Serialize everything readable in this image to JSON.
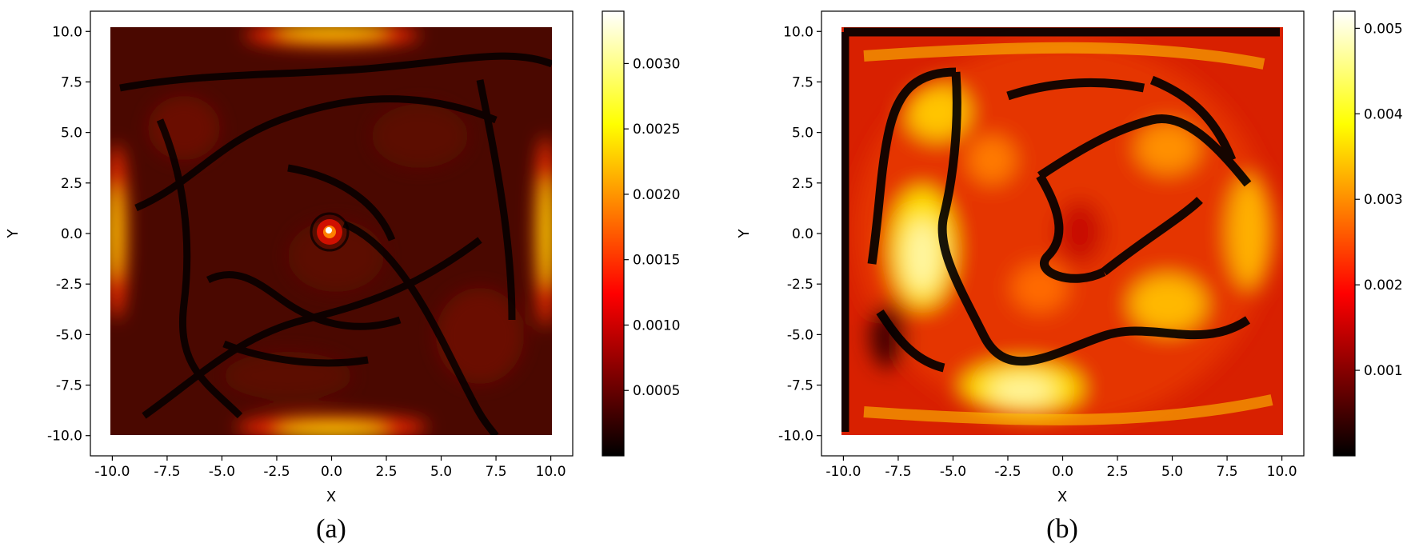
{
  "figure": {
    "captions": [
      "(a)",
      "(b)"
    ]
  },
  "chart_data": [
    {
      "type": "heatmap",
      "panel": "(a)",
      "title": "",
      "xlabel": "X",
      "ylabel": "Y",
      "xlim": [
        -11,
        11
      ],
      "ylim": [
        -11,
        11
      ],
      "domain": {
        "x": [
          -10,
          10
        ],
        "y": [
          -10,
          10
        ]
      },
      "xticks": [
        -10.0,
        -7.5,
        -5.0,
        -2.5,
        0.0,
        2.5,
        5.0,
        7.5,
        10.0
      ],
      "yticks": [
        -10.0,
        -7.5,
        -5.0,
        -2.5,
        0.0,
        2.5,
        5.0,
        7.5,
        10.0
      ],
      "xtick_labels": [
        "-10.0",
        "-7.5",
        "-5.0",
        "-2.5",
        "0.0",
        "2.5",
        "5.0",
        "7.5",
        "10.0"
      ],
      "ytick_labels": [
        "-10.0",
        "-7.5",
        "-5.0",
        "-2.5",
        "0.0",
        "2.5",
        "5.0",
        "7.5",
        "10.0"
      ],
      "colormap": "hot",
      "colorbar": {
        "vmin": 0.0,
        "vmax": 0.0034,
        "ticks": [
          0.0005,
          0.001,
          0.0015,
          0.002,
          0.0025,
          0.003
        ],
        "tick_labels": [
          "0.0005",
          "0.0010",
          "0.0015",
          "0.0020",
          "0.0025",
          "0.0030"
        ]
      },
      "grid": false,
      "features": [
        {
          "kind": "hotspot",
          "x": 0.0,
          "y": 0.0,
          "value": 0.0034
        },
        {
          "kind": "edge_band",
          "edge": "top",
          "x": [
            -3.0,
            3.0
          ],
          "y": 10.0,
          "value": 0.0032
        },
        {
          "kind": "edge_band",
          "edge": "bottom",
          "x": [
            -3.0,
            3.0
          ],
          "y": -10.0,
          "value": 0.003
        },
        {
          "kind": "edge_band",
          "edge": "left",
          "x": -10.0,
          "y": [
            -2.0,
            2.0
          ],
          "value": 0.0028
        },
        {
          "kind": "edge_band",
          "edge": "right",
          "x": 10.0,
          "y": [
            -2.0,
            2.0
          ],
          "value": 0.003
        },
        {
          "kind": "background",
          "value": 0.0006
        }
      ]
    },
    {
      "type": "heatmap",
      "panel": "(b)",
      "title": "",
      "xlabel": "X",
      "ylabel": "Y",
      "xlim": [
        -11,
        11
      ],
      "ylim": [
        -11,
        11
      ],
      "domain": {
        "x": [
          -10,
          10
        ],
        "y": [
          -10,
          10
        ]
      },
      "xticks": [
        -10.0,
        -7.5,
        -5.0,
        -2.5,
        0.0,
        2.5,
        5.0,
        7.5,
        10.0
      ],
      "yticks": [
        -10.0,
        -7.5,
        -5.0,
        -2.5,
        0.0,
        2.5,
        5.0,
        7.5,
        10.0
      ],
      "xtick_labels": [
        "-10.0",
        "-7.5",
        "-5.0",
        "-2.5",
        "0.0",
        "2.5",
        "5.0",
        "7.5",
        "10.0"
      ],
      "ytick_labels": [
        "-10.0",
        "-7.5",
        "-5.0",
        "-2.5",
        "0.0",
        "2.5",
        "5.0",
        "7.5",
        "10.0"
      ],
      "colormap": "hot",
      "colorbar": {
        "vmin": 0.0,
        "vmax": 0.0052,
        "ticks": [
          0.001,
          0.002,
          0.003,
          0.004,
          0.005
        ],
        "tick_labels": [
          "0.001",
          "0.002",
          "0.003",
          "0.004",
          "0.005"
        ]
      },
      "grid": false,
      "features": [
        {
          "kind": "peak",
          "x": -6.5,
          "y": -1.0,
          "value": 0.005
        },
        {
          "kind": "peak",
          "x": -2.0,
          "y": -7.5,
          "value": 0.005
        },
        {
          "kind": "peak",
          "x": -5.5,
          "y": 6.0,
          "value": 0.0042
        },
        {
          "kind": "peak",
          "x": 3.5,
          "y": -4.5,
          "value": 0.0042
        },
        {
          "kind": "peak",
          "x": 3.5,
          "y": 4.5,
          "value": 0.004
        },
        {
          "kind": "peak",
          "x": 7.8,
          "y": 0.0,
          "value": 0.004
        },
        {
          "kind": "background",
          "value": 0.0025
        }
      ]
    }
  ]
}
